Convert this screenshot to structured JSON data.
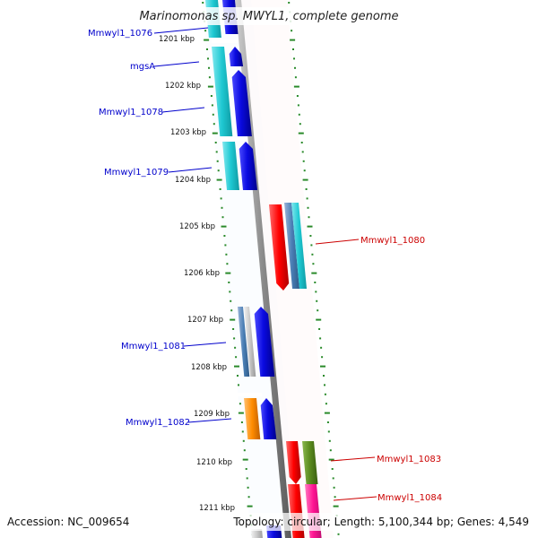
{
  "title": "Marinomonas sp. MWYL1, complete genome",
  "footer": {
    "accession": "Accession: NC_009654",
    "topology": "Topology: circular; Length: 5,100,344 bp; Genes: 4,549"
  },
  "kbp_ticks": [
    "1201 kbp",
    "1202 kbp",
    "1203 kbp",
    "1204 kbp",
    "1205 kbp",
    "1206 kbp",
    "1207 kbp",
    "1208 kbp",
    "1209 kbp",
    "1210 kbp",
    "1211 kbp"
  ],
  "gene_labels": {
    "g1076": "Mmwyl1_1076",
    "mgsA": "mgsA",
    "g1078": "Mmwyl1_1078",
    "g1079": "Mmwyl1_1079",
    "g1080": "Mmwyl1_1080",
    "g1081": "Mmwyl1_1081",
    "g1082": "Mmwyl1_1082",
    "g1083": "Mmwyl1_1083",
    "g1084": "Mmwyl1_1084"
  },
  "colors": {
    "forward_label": "#0000cc",
    "reverse_label": "#cc0000",
    "tick": "#2a8a2a",
    "backbone": "#8a8a8a",
    "blue": "#0a0ae0",
    "cyan": "#1ec8d2",
    "red": "#ff0000",
    "orange": "#ff8c00",
    "olive": "#5a8a1e",
    "magenta": "#ff1493",
    "steel": "#4a7fb5"
  }
}
